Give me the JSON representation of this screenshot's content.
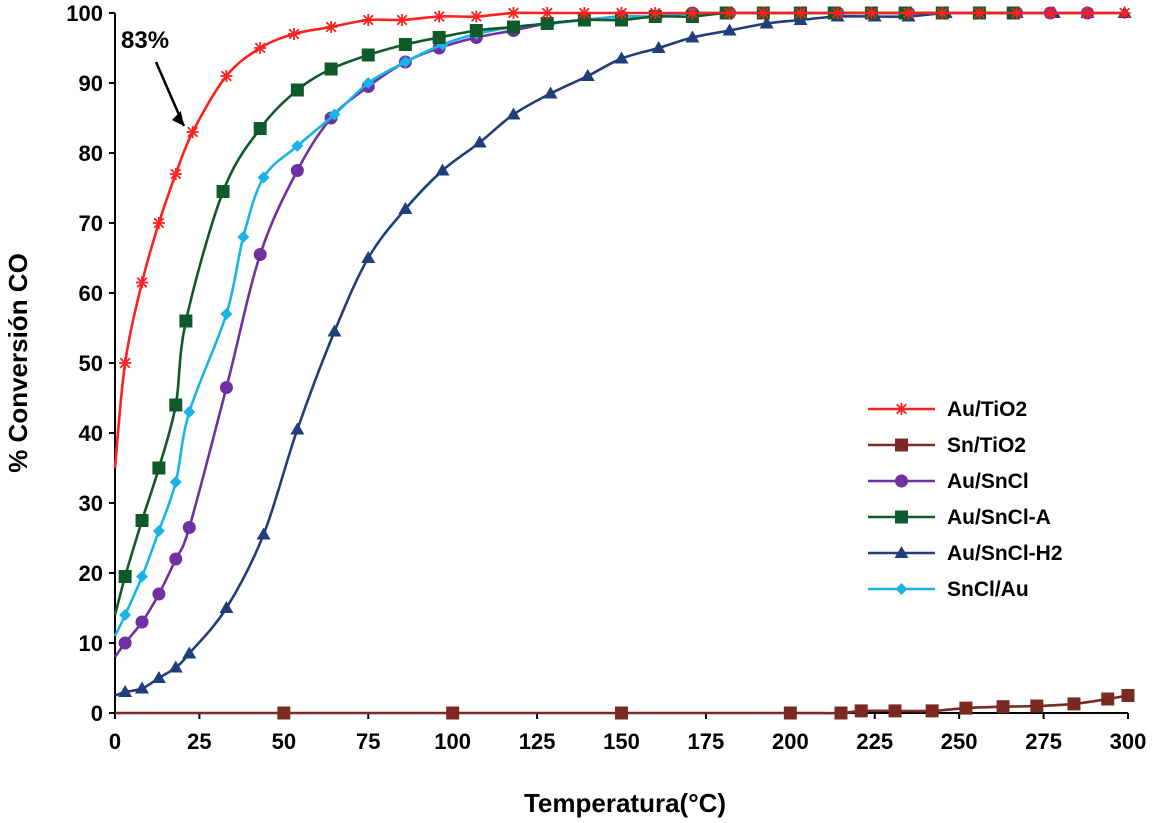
{
  "chart_data": {
    "type": "line",
    "title": "",
    "xlabel": "Temperatura(°C)",
    "ylabel": "% Conversión CO",
    "xlim": [
      0,
      300
    ],
    "ylim": [
      0,
      100
    ],
    "xticks": [
      0,
      25,
      50,
      75,
      100,
      125,
      150,
      175,
      200,
      225,
      250,
      275,
      300
    ],
    "yticks": [
      0,
      10,
      20,
      30,
      40,
      50,
      60,
      70,
      80,
      90,
      100
    ],
    "grid": false,
    "legend_position": "right-middle",
    "annotation": {
      "text": "83%",
      "x": 21,
      "y": 83
    },
    "series": [
      {
        "name": "Au/TiO2",
        "color": "#ff2020",
        "marker": "asterisk",
        "x": [
          0,
          3,
          8,
          13,
          18,
          23,
          33,
          43,
          53,
          64,
          75,
          85,
          96,
          107,
          118,
          128,
          139,
          150,
          160,
          171,
          182,
          192,
          203,
          214,
          224,
          235,
          245,
          256,
          267,
          277,
          288,
          299
        ],
        "y": [
          35,
          50,
          61.5,
          70,
          77,
          83,
          91,
          95,
          97,
          98,
          99,
          99,
          99.5,
          99.5,
          100,
          100,
          100,
          100,
          100,
          100,
          100,
          100,
          100,
          100,
          100,
          100,
          100,
          100,
          100,
          100,
          100,
          100
        ]
      },
      {
        "name": "Sn/TiO2",
        "color": "#7a2a22",
        "marker": "square",
        "x": [
          0,
          50,
          100,
          150,
          200,
          215,
          221,
          231,
          242,
          252,
          263,
          273,
          284,
          294,
          300
        ],
        "y": [
          0,
          0,
          0,
          0,
          0,
          0,
          0.3,
          0.3,
          0.3,
          0.7,
          0.9,
          1.0,
          1.3,
          2.0,
          2.5
        ]
      },
      {
        "name": "Au/SnCl",
        "color": "#7030a0",
        "marker": "circle",
        "x": [
          0,
          3,
          8,
          13,
          18,
          22,
          33,
          43,
          54,
          64,
          75,
          86,
          96,
          107,
          118,
          128,
          139,
          150,
          160,
          171,
          182,
          192,
          203,
          214,
          224,
          235,
          245,
          256,
          267,
          277,
          288
        ],
        "y": [
          8,
          10,
          13,
          17,
          22,
          26.5,
          46.5,
          65.5,
          77.5,
          85,
          89.5,
          93,
          95,
          96.5,
          97.5,
          98.5,
          99,
          99.5,
          99.5,
          100,
          100,
          100,
          100,
          100,
          100,
          100,
          100,
          100,
          100,
          100,
          100
        ]
      },
      {
        "name": "Au/SnCl-A",
        "color": "#0f5a2a",
        "marker": "square",
        "x": [
          0,
          3,
          8,
          13,
          18,
          21,
          32,
          43,
          54,
          64,
          75,
          86,
          96,
          107,
          118,
          128,
          139,
          150,
          160,
          171,
          181,
          192,
          203,
          213,
          224,
          234,
          245,
          256,
          266
        ],
        "y": [
          14,
          19.5,
          27.5,
          35,
          44,
          56,
          74.5,
          83.5,
          89,
          92,
          94,
          95.5,
          96.5,
          97.5,
          98,
          98.5,
          99,
          99,
          99.5,
          99.5,
          100,
          100,
          100,
          100,
          100,
          100,
          100,
          100,
          100
        ]
      },
      {
        "name": "Au/SnCl-H2",
        "color": "#1f3e7a",
        "marker": "triangle",
        "x": [
          0,
          3,
          8,
          13,
          18,
          22,
          33,
          44,
          54,
          65,
          75,
          86,
          97,
          108,
          118,
          129,
          140,
          150,
          161,
          171,
          182,
          193,
          203,
          214,
          225,
          235,
          246,
          256,
          267,
          278,
          288,
          299
        ],
        "y": [
          2.5,
          3,
          3.5,
          5,
          6.5,
          8.5,
          15,
          25.5,
          40.5,
          54.5,
          65,
          72,
          77.5,
          81.5,
          85.5,
          88.5,
          91,
          93.5,
          95,
          96.5,
          97.5,
          98.5,
          99,
          99.5,
          99.5,
          99.5,
          100,
          100,
          100,
          100,
          100,
          100
        ]
      },
      {
        "name": "SnCl/Au",
        "color": "#18b4e8",
        "marker": "diamond",
        "x": [
          0,
          3,
          8,
          13,
          18,
          22,
          33,
          38,
          44,
          54,
          65,
          75,
          86,
          97,
          107,
          118,
          129,
          139,
          150,
          161,
          171,
          182,
          192,
          203,
          214,
          224,
          235,
          245,
          256
        ],
        "y": [
          11,
          14,
          19.5,
          26,
          33,
          43,
          57,
          68,
          76.5,
          81,
          85.5,
          90,
          93,
          95.5,
          97,
          98,
          98.5,
          99,
          99.5,
          99.5,
          100,
          100,
          100,
          100,
          100,
          100,
          100,
          100,
          100
        ]
      }
    ]
  }
}
